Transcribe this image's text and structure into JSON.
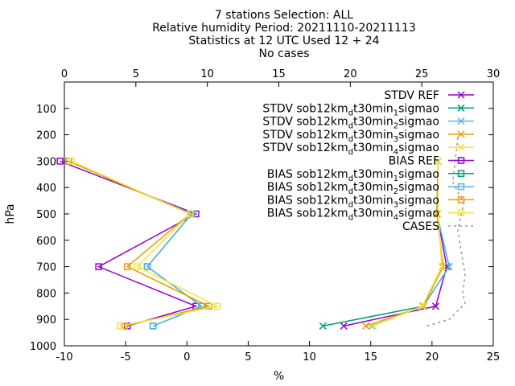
{
  "titles": {
    "line1": "7 stations Selection: ALL",
    "line2": "Relative humidity  Period: 20211110-20211113",
    "line3": "Statistics at 12 UTC  Used 12 + 24",
    "line4": "No cases"
  },
  "chart_data": {
    "type": "line",
    "xlabel": "%",
    "ylabel": "hPa",
    "xlim": [
      -10,
      25
    ],
    "x2lim": [
      0,
      30
    ],
    "ylim": [
      1000,
      0
    ],
    "y_inverted": true,
    "xticks": [
      -10,
      -5,
      0,
      5,
      10,
      15,
      20,
      25
    ],
    "x2ticks": [
      0,
      5,
      10,
      15,
      20,
      25,
      30
    ],
    "yticks": [
      100,
      200,
      300,
      400,
      500,
      600,
      700,
      800,
      900,
      1000
    ],
    "legend_position": "top-right",
    "pressure_levels": [
      300,
      500,
      700,
      850,
      925
    ],
    "series": [
      {
        "key": "stdv_ref",
        "label": "STDV REF",
        "axis": "x1",
        "marker": "x",
        "color": "#9400d3",
        "x": [
          20.5,
          20.4,
          21.2,
          20.3,
          12.8
        ]
      },
      {
        "key": "stdv_1",
        "label": "STDV sob12km",
        "sub": "d",
        "tail": "t30min",
        "idx": "1",
        "tail2": "sigmao",
        "axis": "x1",
        "marker": "x",
        "color": "#009e73",
        "x": [
          20.5,
          20.4,
          21.4,
          19.3,
          11.1
        ]
      },
      {
        "key": "stdv_2",
        "label": "STDV sob12km",
        "sub": "d",
        "tail": "t30min",
        "idx": "2",
        "tail2": "sigmao",
        "axis": "x1",
        "marker": "x",
        "color": "#56b4e9",
        "x": [
          20.5,
          20.4,
          21.4,
          19.3,
          15.1
        ]
      },
      {
        "key": "stdv_3",
        "label": "STDV sob12km",
        "sub": "d",
        "tail": "t30min",
        "idx": "3",
        "tail2": "sigmao",
        "axis": "x1",
        "marker": "x",
        "color": "#e69f00",
        "x": [
          20.5,
          20.4,
          20.9,
          19.3,
          14.6
        ]
      },
      {
        "key": "stdv_4",
        "label": "STDV sob12km",
        "sub": "d",
        "tail": "t30min",
        "idx": "4",
        "tail2": "sigmao",
        "axis": "x1",
        "marker": "x",
        "color": "#f0e442",
        "x": [
          20.5,
          20.5,
          20.8,
          19.2,
          15.2
        ]
      },
      {
        "key": "bias_ref",
        "label": "BIAS REF",
        "axis": "x2",
        "marker": "square",
        "color": "#9400d3",
        "x": [
          -0.3,
          9.2,
          2.4,
          9.2,
          4.4
        ]
      },
      {
        "key": "bias_1",
        "label": "BIAS sob12km",
        "sub": "d",
        "tail": "t30min",
        "idx": "1",
        "tail2": "sigmao",
        "axis": "x2",
        "marker": "square",
        "color": "#009e73",
        "x": [
          0.3,
          8.9,
          5.8,
          9.6,
          6.2
        ]
      },
      {
        "key": "bias_2",
        "label": "BIAS sob12km",
        "sub": "d",
        "tail": "t30min",
        "idx": "2",
        "tail2": "sigmao",
        "axis": "x2",
        "marker": "square",
        "color": "#56b4e9",
        "x": [
          0.3,
          8.9,
          5.8,
          9.6,
          6.2
        ]
      },
      {
        "key": "bias_3",
        "label": "BIAS sob12km",
        "sub": "d",
        "tail": "t30min",
        "idx": "3",
        "tail2": "sigmao",
        "axis": "x2",
        "marker": "square",
        "color": "#e69f00",
        "x": [
          0.3,
          8.8,
          4.4,
          10.1,
          4.2
        ]
      },
      {
        "key": "bias_4",
        "label": "BIAS sob12km",
        "sub": "d",
        "tail": "t30min",
        "idx": "4",
        "tail2": "sigmao",
        "axis": "x2",
        "marker": "square",
        "color": "#f0e442",
        "x": [
          0.5,
          8.8,
          5.1,
          10.7,
          3.9
        ]
      },
      {
        "key": "cases",
        "label": "CASES",
        "axis": "x1",
        "marker": "none",
        "dashed": true,
        "color": "#999999",
        "points": [
          [
            22.1,
            210
          ],
          [
            21.7,
            380
          ],
          [
            22.6,
            460
          ],
          [
            22.1,
            560
          ],
          [
            22.7,
            730
          ],
          [
            22.5,
            800
          ],
          [
            22.7,
            840
          ],
          [
            21.4,
            900
          ],
          [
            19.6,
            925
          ]
        ]
      }
    ]
  }
}
